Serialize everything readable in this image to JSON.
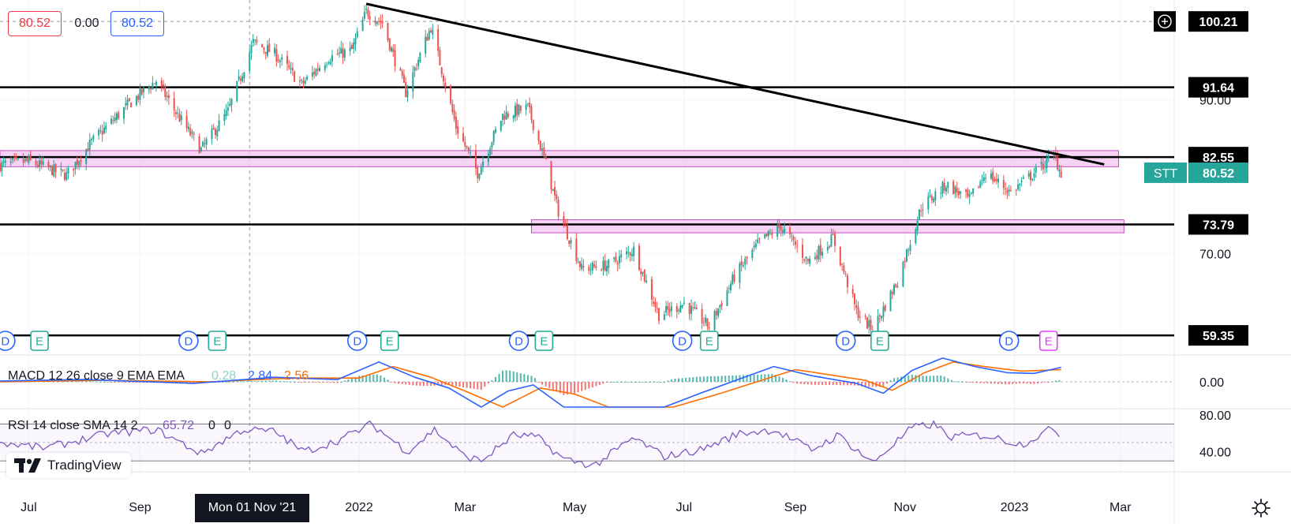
{
  "header": {
    "open_value": "80.52",
    "change_value": "0.00",
    "close_value": "80.52"
  },
  "branding": {
    "logo_text": "TradingView"
  },
  "crosshair_date": "Mon 01 Nov '21",
  "colors": {
    "up": "#26a69a",
    "down": "#ef5350",
    "zone_fill": "#f3c4f0",
    "zone_stroke": "#c24fc2",
    "macd_line": "#2962ff",
    "signal_line": "#ff6d00",
    "rsi_line": "#7e57c2",
    "dividend_badge": "#2962ff",
    "earnings_badge": "#22ab94",
    "earnings_badge_future": "#e040fb",
    "ticker_badge": "#26a69a"
  },
  "chart_data": [
    {
      "type": "candlestick",
      "symbol": "STT",
      "x_axis": {
        "tick_labels": [
          "Jul",
          "Sep",
          "2022",
          "Mar",
          "May",
          "Jul",
          "Sep",
          "Nov",
          "2023",
          "Mar"
        ],
        "range": [
          "2021-06-15",
          "2023-03-31"
        ]
      },
      "y_axis": {
        "tick_labels": [
          "90.00",
          "70.00"
        ],
        "ylim": [
          57,
          103
        ]
      },
      "last_price": 80.52,
      "price_labels": [
        {
          "label": "100.21",
          "kind": "crosshair-price"
        },
        {
          "label": "91.64",
          "kind": "horizontal-level"
        },
        {
          "label": "82.55",
          "kind": "horizontal-level"
        },
        {
          "label": "80.52",
          "kind": "last-price",
          "ticker": "STT"
        },
        {
          "label": "73.79",
          "kind": "horizontal-level"
        },
        {
          "label": "59.35",
          "kind": "horizontal-level"
        }
      ],
      "horizontal_levels": [
        91.64,
        82.55,
        73.79,
        59.35
      ],
      "zones": [
        {
          "start": "2021-06-15",
          "end": "2023-02-28",
          "low": 81.3,
          "high": 83.4
        },
        {
          "start": "2022-04-07",
          "end": "2023-03-03",
          "low": 72.7,
          "high": 74.4
        }
      ],
      "trendline": {
        "start": {
          "date": "2022-01-05",
          "value": 102.5
        },
        "end": {
          "date": "2023-02-20",
          "value": 81.6
        }
      },
      "close_path": [
        {
          "date": "2021-06-15",
          "value": 81.5
        },
        {
          "date": "2021-07-01",
          "value": 82.0
        },
        {
          "date": "2021-07-22",
          "value": 80.2
        },
        {
          "date": "2021-08-05",
          "value": 84.5
        },
        {
          "date": "2021-08-26",
          "value": 89.5
        },
        {
          "date": "2021-09-10",
          "value": 92.5
        },
        {
          "date": "2021-09-22",
          "value": 88.0
        },
        {
          "date": "2021-10-05",
          "value": 83.5
        },
        {
          "date": "2021-10-20",
          "value": 88.5
        },
        {
          "date": "2021-11-03",
          "value": 97.5
        },
        {
          "date": "2021-11-15",
          "value": 96.0
        },
        {
          "date": "2021-11-30",
          "value": 92.0
        },
        {
          "date": "2021-12-15",
          "value": 95.5
        },
        {
          "date": "2021-12-28",
          "value": 96.5
        },
        {
          "date": "2022-01-05",
          "value": 101.5
        },
        {
          "date": "2022-01-14",
          "value": 100.0
        },
        {
          "date": "2022-01-27",
          "value": 91.0
        },
        {
          "date": "2022-02-10",
          "value": 99.5
        },
        {
          "date": "2022-02-24",
          "value": 86.5
        },
        {
          "date": "2022-03-08",
          "value": 80.5
        },
        {
          "date": "2022-03-22",
          "value": 88.0
        },
        {
          "date": "2022-04-05",
          "value": 89.0
        },
        {
          "date": "2022-04-14",
          "value": 82.5
        },
        {
          "date": "2022-04-22",
          "value": 75.5
        },
        {
          "date": "2022-05-05",
          "value": 68.0
        },
        {
          "date": "2022-05-20",
          "value": 68.5
        },
        {
          "date": "2022-06-03",
          "value": 70.5
        },
        {
          "date": "2022-06-17",
          "value": 62.0
        },
        {
          "date": "2022-07-01",
          "value": 63.5
        },
        {
          "date": "2022-07-15",
          "value": 60.5
        },
        {
          "date": "2022-07-29",
          "value": 67.0
        },
        {
          "date": "2022-08-12",
          "value": 71.5
        },
        {
          "date": "2022-08-24",
          "value": 73.5
        },
        {
          "date": "2022-09-08",
          "value": 69.0
        },
        {
          "date": "2022-09-22",
          "value": 72.0
        },
        {
          "date": "2022-10-05",
          "value": 62.5
        },
        {
          "date": "2022-10-14",
          "value": 60.0
        },
        {
          "date": "2022-10-28",
          "value": 66.5
        },
        {
          "date": "2022-11-10",
          "value": 76.0
        },
        {
          "date": "2022-11-24",
          "value": 79.0
        },
        {
          "date": "2022-12-07",
          "value": 77.0
        },
        {
          "date": "2022-12-16",
          "value": 80.5
        },
        {
          "date": "2022-12-30",
          "value": 78.0
        },
        {
          "date": "2023-01-12",
          "value": 80.5
        },
        {
          "date": "2023-01-23",
          "value": 82.8
        },
        {
          "date": "2023-01-27",
          "value": 80.5
        }
      ],
      "event_markers": [
        {
          "date": "2021-06-18",
          "kind": "D"
        },
        {
          "date": "2021-07-07",
          "kind": "E"
        },
        {
          "date": "2021-09-28",
          "kind": "D"
        },
        {
          "date": "2021-10-14",
          "kind": "E"
        },
        {
          "date": "2021-12-31",
          "kind": "D"
        },
        {
          "date": "2022-01-18",
          "kind": "E"
        },
        {
          "date": "2022-03-31",
          "kind": "D"
        },
        {
          "date": "2022-04-14",
          "kind": "E"
        },
        {
          "date": "2022-06-30",
          "kind": "D"
        },
        {
          "date": "2022-07-15",
          "kind": "E"
        },
        {
          "date": "2022-09-29",
          "kind": "D"
        },
        {
          "date": "2022-10-18",
          "kind": "E"
        },
        {
          "date": "2022-12-29",
          "kind": "D"
        },
        {
          "date": "2023-01-20",
          "kind": "E"
        }
      ]
    },
    {
      "type": "line",
      "legend": "MACD 12 26 close 9 EMA EMA",
      "values_shown": [
        "0.28",
        "2.84",
        "2.56"
      ],
      "y_axis": {
        "tick_labels": [
          "0.00"
        ],
        "ylim": [
          -3.3,
          3.3
        ]
      },
      "series": [
        {
          "role": "macd",
          "points": [
            {
              "date": "2021-06-15",
              "value": 0.1
            },
            {
              "date": "2021-08-01",
              "value": 0.3
            },
            {
              "date": "2021-10-01",
              "value": -0.2
            },
            {
              "date": "2021-11-15",
              "value": 0.6
            },
            {
              "date": "2021-12-20",
              "value": 0.3
            },
            {
              "date": "2022-01-12",
              "value": 2.6
            },
            {
              "date": "2022-02-01",
              "value": 0.6
            },
            {
              "date": "2022-02-20",
              "value": -0.8
            },
            {
              "date": "2022-03-10",
              "value": -3.5
            },
            {
              "date": "2022-03-25",
              "value": -1.2
            },
            {
              "date": "2022-04-08",
              "value": -0.4
            },
            {
              "date": "2022-04-25",
              "value": -3.5
            },
            {
              "date": "2022-06-20",
              "value": -3.5
            },
            {
              "date": "2022-07-10",
              "value": -1.5
            },
            {
              "date": "2022-08-20",
              "value": 2.0
            },
            {
              "date": "2022-09-10",
              "value": 0.8
            },
            {
              "date": "2022-10-05",
              "value": -0.2
            },
            {
              "date": "2022-10-20",
              "value": -1.5
            },
            {
              "date": "2022-11-05",
              "value": 1.5
            },
            {
              "date": "2022-11-22",
              "value": 3.1
            },
            {
              "date": "2022-12-10",
              "value": 2.0
            },
            {
              "date": "2022-12-28",
              "value": 1.2
            },
            {
              "date": "2023-01-12",
              "value": 1.1
            },
            {
              "date": "2023-01-27",
              "value": 1.9
            }
          ]
        },
        {
          "role": "signal",
          "points": [
            {
              "date": "2021-06-15",
              "value": 0.0
            },
            {
              "date": "2021-08-10",
              "value": 0.2
            },
            {
              "date": "2021-10-10",
              "value": 0.0
            },
            {
              "date": "2021-11-25",
              "value": 0.5
            },
            {
              "date": "2022-01-01",
              "value": 0.5
            },
            {
              "date": "2022-01-20",
              "value": 2.0
            },
            {
              "date": "2022-02-10",
              "value": 0.6
            },
            {
              "date": "2022-03-01",
              "value": -1.2
            },
            {
              "date": "2022-03-22",
              "value": -3.5
            },
            {
              "date": "2022-04-12",
              "value": -0.8
            },
            {
              "date": "2022-05-01",
              "value": -1.6
            },
            {
              "date": "2022-05-20",
              "value": -3.5
            },
            {
              "date": "2022-06-25",
              "value": -3.5
            },
            {
              "date": "2022-07-20",
              "value": -1.6
            },
            {
              "date": "2022-09-01",
              "value": 1.6
            },
            {
              "date": "2022-10-10",
              "value": 0.2
            },
            {
              "date": "2022-10-25",
              "value": -1.1
            },
            {
              "date": "2022-11-12",
              "value": 1.2
            },
            {
              "date": "2022-11-28",
              "value": 2.6
            },
            {
              "date": "2022-12-15",
              "value": 2.0
            },
            {
              "date": "2023-01-05",
              "value": 1.4
            },
            {
              "date": "2023-01-27",
              "value": 1.6
            }
          ]
        }
      ]
    },
    {
      "type": "line",
      "legend": "RSI 14 close SMA 14 2",
      "values_shown": [
        "65.72",
        "0",
        "0"
      ],
      "y_axis": {
        "tick_labels": [
          "80.00",
          "40.00"
        ],
        "ylim": [
          20,
          85
        ],
        "bands": [
          70,
          30
        ]
      },
      "series": [
        {
          "role": "rsi",
          "points": [
            {
              "date": "2021-06-15",
              "value": 50
            },
            {
              "date": "2021-07-10",
              "value": 44
            },
            {
              "date": "2021-08-15",
              "value": 60
            },
            {
              "date": "2021-09-10",
              "value": 64
            },
            {
              "date": "2021-10-05",
              "value": 38
            },
            {
              "date": "2021-10-28",
              "value": 64
            },
            {
              "date": "2021-11-15",
              "value": 62
            },
            {
              "date": "2021-12-01",
              "value": 40
            },
            {
              "date": "2021-12-20",
              "value": 52
            },
            {
              "date": "2022-01-08",
              "value": 70
            },
            {
              "date": "2022-01-28",
              "value": 40
            },
            {
              "date": "2022-02-12",
              "value": 64
            },
            {
              "date": "2022-02-28",
              "value": 36
            },
            {
              "date": "2022-03-10",
              "value": 30
            },
            {
              "date": "2022-03-28",
              "value": 58
            },
            {
              "date": "2022-04-10",
              "value": 56
            },
            {
              "date": "2022-04-25",
              "value": 32
            },
            {
              "date": "2022-05-12",
              "value": 25
            },
            {
              "date": "2022-06-03",
              "value": 55
            },
            {
              "date": "2022-06-20",
              "value": 35
            },
            {
              "date": "2022-07-10",
              "value": 42
            },
            {
              "date": "2022-08-01",
              "value": 60
            },
            {
              "date": "2022-08-20",
              "value": 64
            },
            {
              "date": "2022-09-10",
              "value": 42
            },
            {
              "date": "2022-09-25",
              "value": 58
            },
            {
              "date": "2022-10-14",
              "value": 28
            },
            {
              "date": "2022-11-05",
              "value": 66
            },
            {
              "date": "2022-11-18",
              "value": 70
            },
            {
              "date": "2022-11-25",
              "value": 56
            },
            {
              "date": "2022-12-15",
              "value": 58
            },
            {
              "date": "2023-01-05",
              "value": 48
            },
            {
              "date": "2023-01-23",
              "value": 66
            },
            {
              "date": "2023-01-27",
              "value": 58
            }
          ]
        }
      ]
    }
  ]
}
